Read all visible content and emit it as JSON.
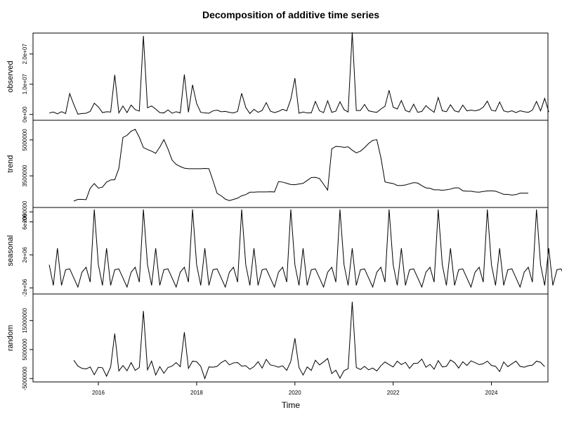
{
  "chart_data": {
    "type": "line",
    "title": "Decomposition of additive time series",
    "xlabel": "Time",
    "x_ticks": [
      "2016",
      "2018",
      "2020",
      "2022",
      "2024"
    ],
    "x_tick_values": [
      2016,
      2018,
      2020,
      2022,
      2024
    ],
    "x_range": [
      2014.67,
      2025.15
    ],
    "start": 2015.0,
    "step": 0.083333,
    "panels": [
      {
        "name": "observed",
        "ylim": [
          -1000000,
          26000000
        ],
        "y_ticks": [
          0,
          10000000,
          20000000
        ],
        "y_tick_labels": [
          "0e+00",
          "1.0e+07",
          "2.0e+07"
        ],
        "values": [
          500000,
          800000,
          200000,
          900000,
          300000,
          6900000,
          3300000,
          100000,
          300000,
          400000,
          1000000,
          3700000,
          2500000,
          600000,
          900000,
          800000,
          13100000,
          500000,
          2800000,
          600000,
          3100000,
          1600000,
          1100000,
          26000000,
          2200000,
          2800000,
          1800000,
          600000,
          500000,
          1500000,
          400000,
          900000,
          500000,
          13200000,
          700000,
          9800000,
          3600000,
          700000,
          500000,
          400000,
          1200000,
          1400000,
          900000,
          1000000,
          700000,
          500000,
          1000000,
          7000000,
          2300000,
          300000,
          1700000,
          700000,
          1300000,
          3900000,
          1100000,
          600000,
          1000000,
          1700000,
          1200000,
          5000000,
          12000000,
          400000,
          800000,
          500000,
          500000,
          4300000,
          1200000,
          600000,
          4500000,
          700000,
          1100000,
          4200000,
          1600000,
          800000,
          27200000,
          1300000,
          1300000,
          3300000,
          1200000,
          900000,
          700000,
          1800000,
          2700000,
          8000000,
          2400000,
          1800000,
          4600000,
          1300000,
          800000,
          3400000,
          700000,
          1000000,
          2900000,
          1700000,
          700000,
          5600000,
          1200000,
          900000,
          3200000,
          1200000,
          800000,
          3100000,
          1200000,
          1400000,
          1200000,
          1500000,
          2400000,
          4400000,
          1400000,
          1100000,
          4100000,
          1200000,
          800000,
          1200000,
          600000,
          1200000,
          900000,
          700000,
          1400000,
          4300000,
          1200000,
          5300000,
          800000
        ]
      },
      {
        "name": "trend",
        "ylim": [
          2300000,
          5700000
        ],
        "y_ticks": [
          2000000,
          3500000,
          5000000
        ],
        "y_tick_labels": [
          "2000000",
          "3500000",
          "5000000"
        ],
        "values": [
          null,
          null,
          null,
          null,
          null,
          null,
          2450000,
          2520000,
          2520000,
          2510000,
          2980000,
          3180000,
          2990000,
          3030000,
          3240000,
          3330000,
          3340000,
          3810000,
          5100000,
          5190000,
          5360000,
          5440000,
          5110000,
          4680000,
          4600000,
          4530000,
          4440000,
          4700000,
          5010000,
          4620000,
          4160000,
          3980000,
          3890000,
          3820000,
          3800000,
          3800000,
          3800000,
          3800000,
          3810000,
          3800000,
          3300000,
          2770000,
          2670000,
          2530000,
          2470000,
          2520000,
          2570000,
          2670000,
          2720000,
          2820000,
          2820000,
          2830000,
          2830000,
          2830000,
          2840000,
          2830000,
          3260000,
          3240000,
          3190000,
          3140000,
          3130000,
          3160000,
          3190000,
          3310000,
          3430000,
          3440000,
          3390000,
          3150000,
          2910000,
          4630000,
          4730000,
          4720000,
          4690000,
          4710000,
          4570000,
          4460000,
          4530000,
          4670000,
          4850000,
          4980000,
          5010000,
          4260000,
          3250000,
          3210000,
          3180000,
          3100000,
          3100000,
          3120000,
          3170000,
          3220000,
          3200000,
          3090000,
          3000000,
          2980000,
          2920000,
          2920000,
          2900000,
          2920000,
          2950000,
          3000000,
          3000000,
          2880000,
          2860000,
          2860000,
          2830000,
          2820000,
          2850000,
          2870000,
          2880000,
          2860000,
          2800000,
          2730000,
          2730000,
          2700000,
          2720000,
          2780000,
          2780000,
          2780000
        ]
      },
      {
        "name": "seasonal",
        "ylim": [
          -2400000,
          7400000
        ],
        "y_ticks": [
          -2000000,
          2000000,
          6000000
        ],
        "y_tick_labels": [
          "-2e+06",
          "2e+06",
          "6e+06"
        ],
        "values": [
          800000,
          -1700000,
          2800000,
          -1700000,
          200000,
          300000,
          -800000,
          -1900000,
          -100000,
          500000,
          -1300000,
          7500000
        ],
        "cycles": 10,
        "tail": [
          800000,
          -1700000,
          2800000,
          -1700000,
          200000,
          300000,
          -800000,
          -1900000,
          -100000,
          500000,
          -1300000,
          7500000,
          1100000
        ]
      },
      {
        "name": "random",
        "ylim": [
          -5200000,
          23200000
        ],
        "y_ticks": [
          -5000000,
          5000000,
          15000000
        ],
        "y_tick_labels": [
          "-5000000",
          "5000000",
          "15000000"
        ],
        "values": [
          null,
          null,
          null,
          null,
          null,
          null,
          1300000,
          -700000,
          -1500000,
          -1700000,
          -1000000,
          -3700000,
          -1100000,
          -1300000,
          -4200000,
          -1000000,
          10500000,
          -2400000,
          -500000,
          -2300000,
          500000,
          -2200000,
          -1200000,
          18300000,
          -2000000,
          1000000,
          -3800000,
          -900000,
          -3200000,
          -1200000,
          -700000,
          500000,
          -900000,
          11000000,
          -1500000,
          1000000,
          800000,
          -800000,
          -5000000,
          -1000000,
          -1100000,
          -800000,
          500000,
          1300000,
          -300000,
          400000,
          500000,
          -700000,
          -600000,
          -1800000,
          -900000,
          800000,
          -1400000,
          1600000,
          -300000,
          -600000,
          -1100000,
          -600000,
          -2200000,
          900000,
          8900000,
          -1200000,
          -3800000,
          -1000000,
          -2200000,
          1300000,
          -300000,
          700000,
          1900000,
          -3300000,
          -2100000,
          -4900000,
          -2300000,
          -1600000,
          21500000,
          -1200000,
          -1900000,
          -800000,
          -2000000,
          -1400000,
          -2400000,
          -600000,
          700000,
          -200000,
          -1000000,
          1000000,
          -200000,
          600000,
          -1500000,
          200000,
          300000,
          1700000,
          -1100000,
          -100000,
          -1800000,
          1200000,
          -1000000,
          -800000,
          1400000,
          500000,
          -1400000,
          800000,
          -500000,
          1100000,
          500000,
          -200000,
          100000,
          1000000,
          -500000,
          -800000,
          -2600000,
          700000,
          -900000,
          100000,
          1000000,
          -800000,
          -1100000,
          -600000,
          -400000,
          1000000,
          600000,
          -900000
        ]
      }
    ]
  }
}
